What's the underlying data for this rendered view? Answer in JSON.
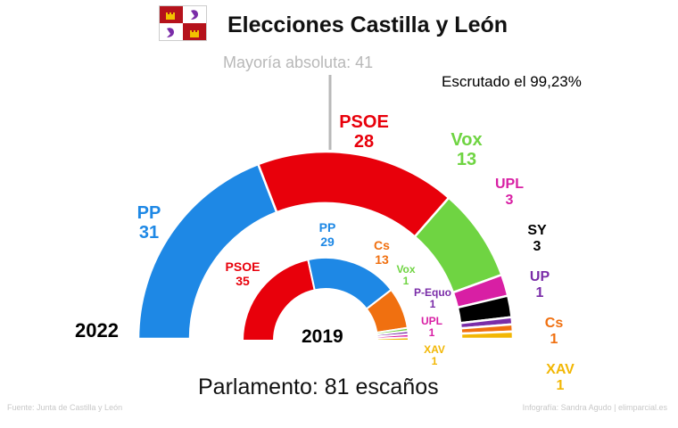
{
  "header": {
    "title": "Elecciones Castilla y León",
    "flag_colors": [
      "#b5121b",
      "#ffffff"
    ]
  },
  "majority_label": "Mayoría absoluta: 41",
  "scrutiny_label": "Escrutado el 99,23%",
  "footer": {
    "parliament_label": "Parlamento:  81  escaños",
    "source": "Fuente:  Junta de Castilla y León",
    "credit": "Infografía: Sandra Agudo | elimparcial.es"
  },
  "chart_data": [
    {
      "type": "pie",
      "subtype": "half-donut",
      "label": "2022",
      "total": 81,
      "majority": 41,
      "categories": [
        "PP",
        "PSOE",
        "Vox",
        "UPL",
        "SY",
        "UP",
        "Cs",
        "XAV"
      ],
      "values": [
        31,
        28,
        13,
        3,
        3,
        1,
        1,
        1
      ],
      "colors": [
        "#1e88e5",
        "#e8000b",
        "#6fd442",
        "#d81fa4",
        "#000000",
        "#7a2ca8",
        "#f07010",
        "#f2b705"
      ]
    },
    {
      "type": "pie",
      "subtype": "half-donut",
      "label": "2019",
      "total": 81,
      "categories": [
        "PSOE",
        "PP",
        "Cs",
        "Vox",
        "P-Equo",
        "UPL",
        "XAV"
      ],
      "values": [
        35,
        29,
        13,
        1,
        1,
        1,
        1
      ],
      "colors": [
        "#e8000b",
        "#1e88e5",
        "#f07010",
        "#6fd442",
        "#7a2ca8",
        "#d81fa4",
        "#f2b705"
      ]
    }
  ]
}
